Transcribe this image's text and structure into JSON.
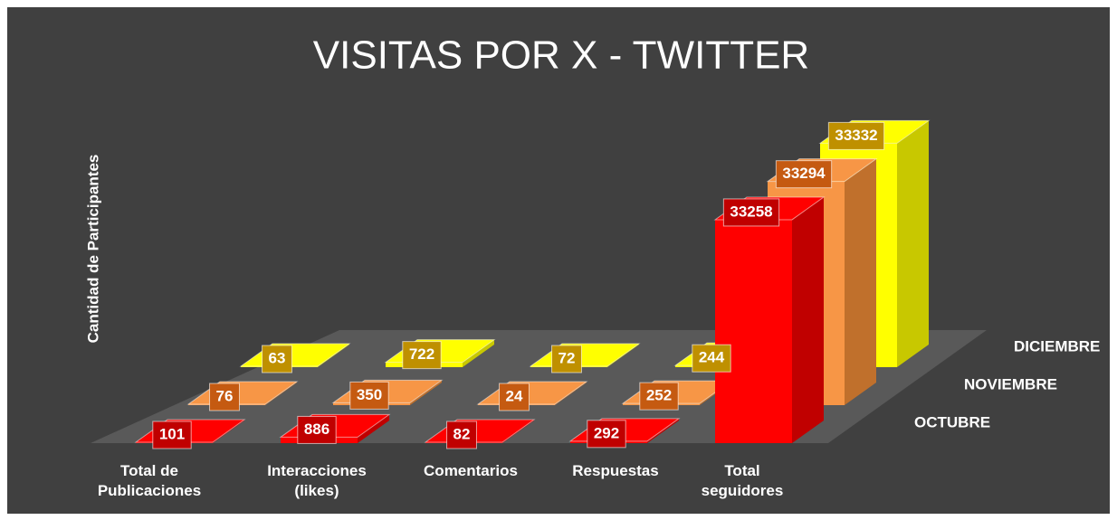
{
  "chart_data": {
    "type": "bar3d",
    "title": "VISITAS POR X - TWITTER",
    "y_label": "Cantidad de Participantes",
    "categories": [
      "Total de Publicaciones",
      "Interacciones (likes)",
      "Comentarios",
      "Respuestas",
      "Total seguidores"
    ],
    "series": [
      {
        "name": "OCTUBRE",
        "color": "#ff0000",
        "side_color": "#c00000",
        "label_color": "#c00000",
        "values": [
          101,
          886,
          82,
          292,
          33258
        ]
      },
      {
        "name": "NOVIEMBRE",
        "color": "#f79646",
        "side_color": "#c0702c",
        "label_color": "#c55a11",
        "values": [
          76,
          350,
          24,
          252,
          33294
        ]
      },
      {
        "name": "DICIEMBRE",
        "color": "#ffff00",
        "side_color": "#c8c800",
        "label_color": "#bf9000",
        "values": [
          63,
          722,
          72,
          244,
          33332
        ]
      }
    ],
    "ylim": [
      0,
      35000
    ]
  }
}
